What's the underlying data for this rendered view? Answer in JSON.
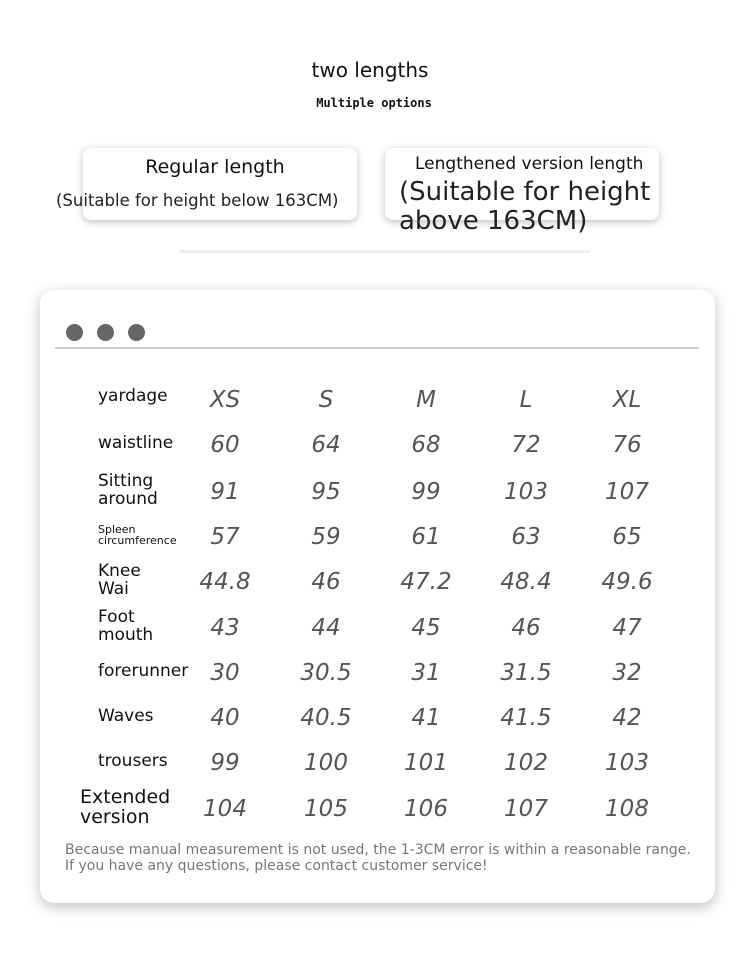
{
  "header": {
    "title": "two lengths",
    "subtitle": "Multiple options"
  },
  "options": [
    {
      "title": "Regular length",
      "subtitle": "(Suitable for height below 163CM)"
    },
    {
      "title": "Lengthened version length",
      "subtitle": "(Suitable for height above 163CM)"
    }
  ],
  "window_dots_color": "#666666",
  "table": {
    "rows": [
      {
        "label": "yardage",
        "values": [
          "XS",
          "S",
          "M",
          "L",
          "XL"
        ]
      },
      {
        "label": "waistline",
        "values": [
          "60",
          "64",
          "68",
          "72",
          "76"
        ]
      },
      {
        "label": "Sitting around",
        "values": [
          "91",
          "95",
          "99",
          "103",
          "107"
        ]
      },
      {
        "label": "Spleen circumference",
        "values": [
          "57",
          "59",
          "61",
          "63",
          "65"
        ]
      },
      {
        "label": "Knee Wai",
        "values": [
          "44.8",
          "46",
          "47.2",
          "48.4",
          "49.6"
        ]
      },
      {
        "label": "Foot mouth",
        "values": [
          "43",
          "44",
          "45",
          "46",
          "47"
        ]
      },
      {
        "label": "forerunner",
        "values": [
          "30",
          "30.5",
          "31",
          "31.5",
          "32"
        ]
      },
      {
        "label": "Waves",
        "values": [
          "40",
          "40.5",
          "41",
          "41.5",
          "42"
        ]
      },
      {
        "label": "trousers",
        "values": [
          "99",
          "100",
          "101",
          "102",
          "103"
        ]
      },
      {
        "label": "Extended version",
        "values": [
          "104",
          "105",
          "106",
          "107",
          "108"
        ]
      }
    ]
  },
  "note": {
    "line1": "Because manual measurement is not used, the 1-3CM error is within a reasonable range.",
    "line2": "If you have any questions, please contact customer service!"
  }
}
